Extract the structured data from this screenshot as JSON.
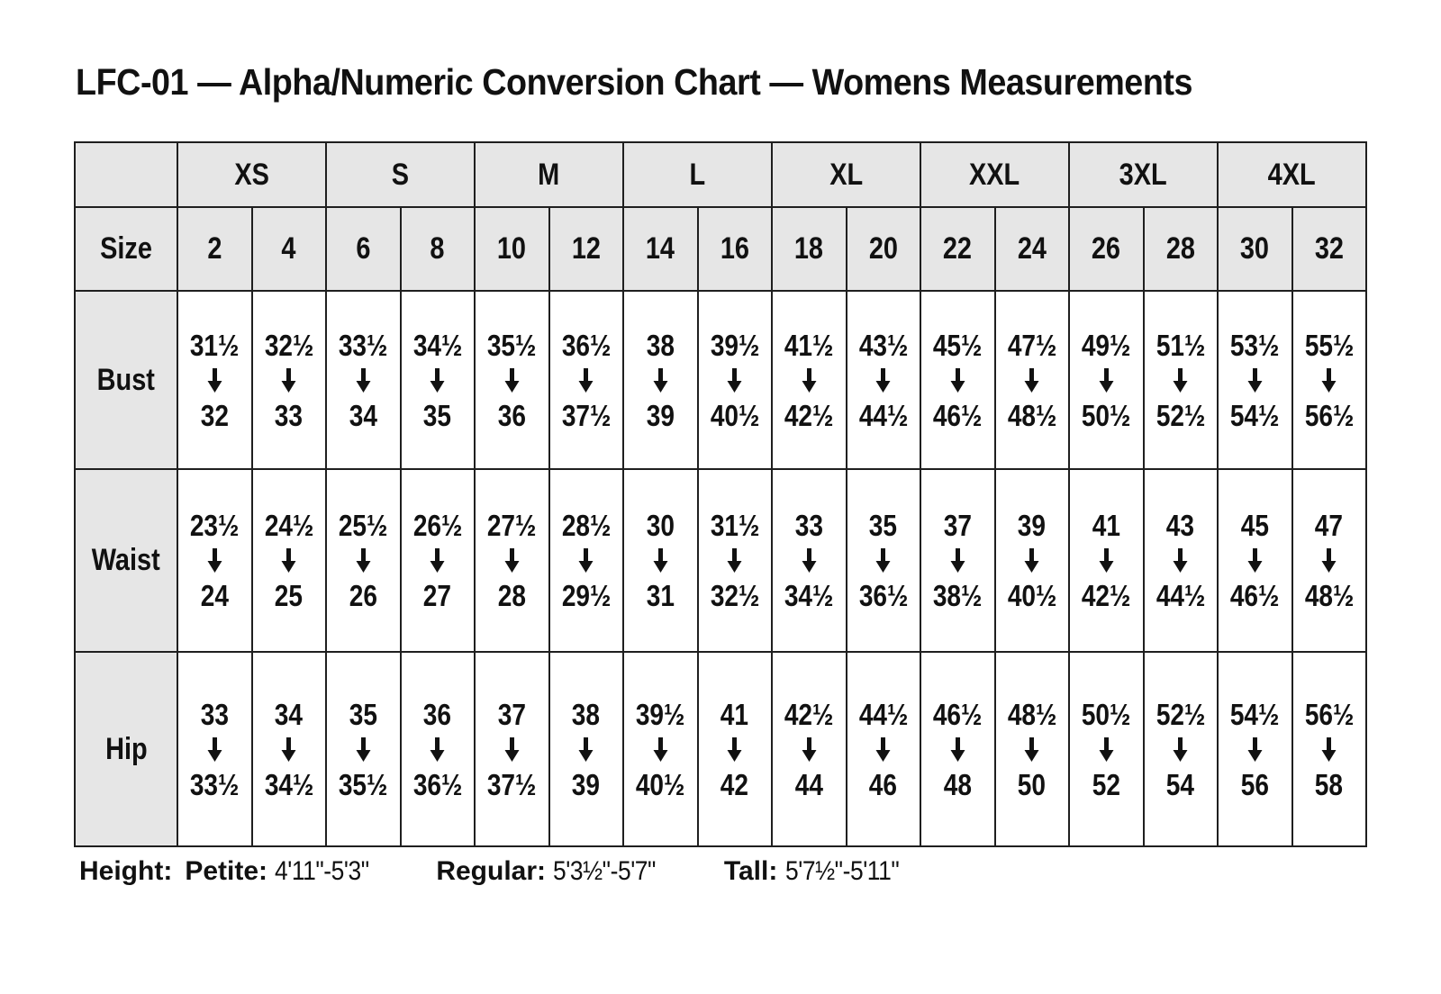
{
  "title": "LFC-01 — Alpha/Numeric Conversion Chart — Womens Measurements",
  "chart_data": {
    "type": "table",
    "title": "LFC-01 — Alpha/Numeric Conversion Chart — Womens Measurements",
    "alpha_groups": [
      "XS",
      "S",
      "M",
      "L",
      "XL",
      "XXL",
      "3XL",
      "4XL"
    ],
    "size_label": "Size",
    "sizes": [
      "2",
      "4",
      "6",
      "8",
      "10",
      "12",
      "14",
      "16",
      "18",
      "20",
      "22",
      "24",
      "26",
      "28",
      "30",
      "32"
    ],
    "measurements": [
      {
        "label": "Bust",
        "ranges": [
          [
            "31½",
            "32"
          ],
          [
            "32½",
            "33"
          ],
          [
            "33½",
            "34"
          ],
          [
            "34½",
            "35"
          ],
          [
            "35½",
            "36"
          ],
          [
            "36½",
            "37½"
          ],
          [
            "38",
            "39"
          ],
          [
            "39½",
            "40½"
          ],
          [
            "41½",
            "42½"
          ],
          [
            "43½",
            "44½"
          ],
          [
            "45½",
            "46½"
          ],
          [
            "47½",
            "48½"
          ],
          [
            "49½",
            "50½"
          ],
          [
            "51½",
            "52½"
          ],
          [
            "53½",
            "54½"
          ],
          [
            "55½",
            "56½"
          ]
        ]
      },
      {
        "label": "Waist",
        "ranges": [
          [
            "23½",
            "24"
          ],
          [
            "24½",
            "25"
          ],
          [
            "25½",
            "26"
          ],
          [
            "26½",
            "27"
          ],
          [
            "27½",
            "28"
          ],
          [
            "28½",
            "29½"
          ],
          [
            "30",
            "31"
          ],
          [
            "31½",
            "32½"
          ],
          [
            "33",
            "34½"
          ],
          [
            "35",
            "36½"
          ],
          [
            "37",
            "38½"
          ],
          [
            "39",
            "40½"
          ],
          [
            "41",
            "42½"
          ],
          [
            "43",
            "44½"
          ],
          [
            "45",
            "46½"
          ],
          [
            "47",
            "48½"
          ]
        ]
      },
      {
        "label": "Hip",
        "ranges": [
          [
            "33",
            "33½"
          ],
          [
            "34",
            "34½"
          ],
          [
            "35",
            "35½"
          ],
          [
            "36",
            "36½"
          ],
          [
            "37",
            "37½"
          ],
          [
            "38",
            "39"
          ],
          [
            "39½",
            "40½"
          ],
          [
            "41",
            "42"
          ],
          [
            "42½",
            "44"
          ],
          [
            "44½",
            "46"
          ],
          [
            "46½",
            "48"
          ],
          [
            "48½",
            "50"
          ],
          [
            "50½",
            "52"
          ],
          [
            "52½",
            "54"
          ],
          [
            "54½",
            "56"
          ],
          [
            "56½",
            "58"
          ]
        ]
      }
    ]
  },
  "footer": {
    "height_label": "Height:",
    "entries": [
      {
        "label": "Petite:",
        "range": "4'11\"-5'3\""
      },
      {
        "label": "Regular:",
        "range": "5'3½\"-5'7\""
      },
      {
        "label": "Tall:",
        "range": "5'7½\"-5'11\""
      }
    ]
  },
  "colors": {
    "header_bg": "#e6e6e6",
    "border": "#1f1f1f",
    "text": "#111111",
    "page_bg": "#ffffff"
  }
}
